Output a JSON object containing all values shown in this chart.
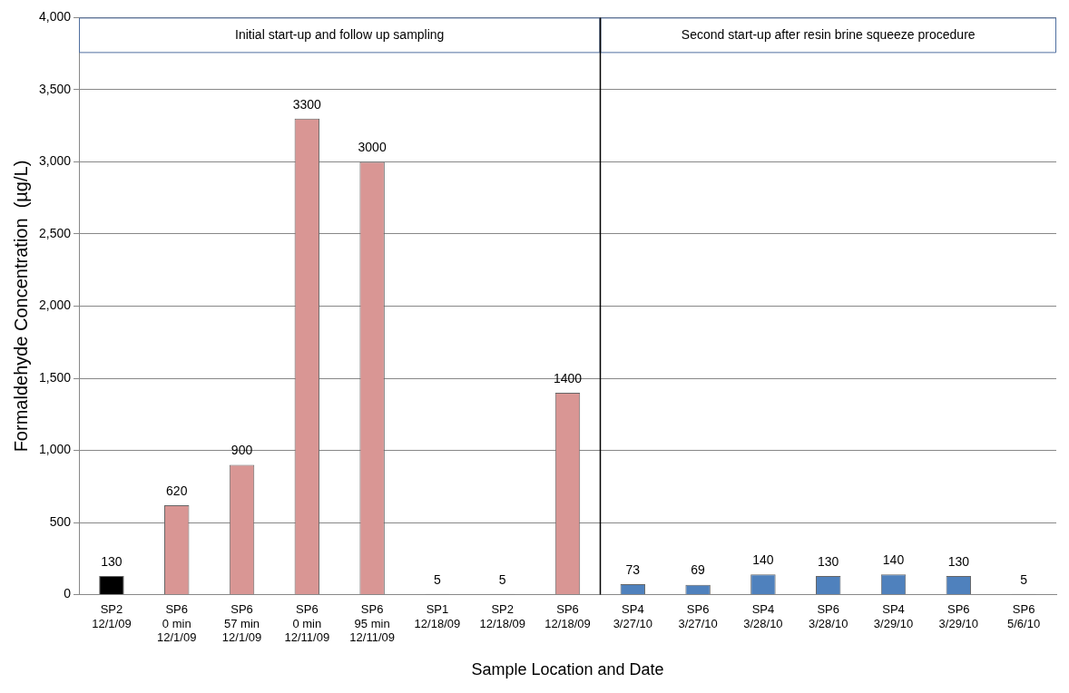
{
  "chart_data": {
    "type": "bar",
    "xlabel": "Sample Location and Date",
    "ylabel": "Formaldehyde Concentration  (µg/L)",
    "categories": [
      "SP2\n12/1/09",
      "SP6\n0 min\n12/1/09",
      "SP6\n57 min\n12/1/09",
      "SP6\n0 min\n12/11/09",
      "SP6\n95 min\n12/11/09",
      "SP1\n12/18/09",
      "SP2\n12/18/09",
      "SP6\n12/18/09",
      "SP4\n3/27/10",
      "SP6\n3/27/10",
      "SP4\n3/28/10",
      "SP6\n3/28/10",
      "SP4\n3/29/10",
      "SP6\n3/29/10",
      "SP6\n5/6/10"
    ],
    "values": [
      130,
      620,
      900,
      3300,
      3000,
      5,
      5,
      1400,
      73,
      69,
      140,
      130,
      140,
      130,
      5
    ],
    "colors": [
      "#000000",
      "#d99694",
      "#d99694",
      "#d99694",
      "#d99694",
      "#d99694",
      "#d99694",
      "#d99694",
      "#4f81bd",
      "#4f81bd",
      "#4f81bd",
      "#4f81bd",
      "#4f81bd",
      "#4f81bd",
      "#4f81bd"
    ],
    "data_labels": true,
    "ylim": [
      0,
      4000
    ],
    "yticks": [
      0,
      500,
      {
        "value": 1000,
        "label": "1,000"
      },
      {
        "value": 1500,
        "label": "1,500"
      },
      {
        "value": 2000,
        "label": "2,000"
      },
      {
        "value": 2500,
        "label": "2,500"
      },
      {
        "value": 3000,
        "label": "3,000"
      },
      {
        "value": 3500,
        "label": "3,500"
      },
      {
        "value": 4000,
        "label": "4,000"
      }
    ],
    "grid": "y",
    "ref_lines": [
      {
        "axis": "x",
        "value": "SP4\n3/27/10",
        "color": "#000000"
      }
    ],
    "annotations": [
      "Initial start-up and follow up sampling",
      "Second start-up after resin brine squeeze procedure"
    ]
  }
}
